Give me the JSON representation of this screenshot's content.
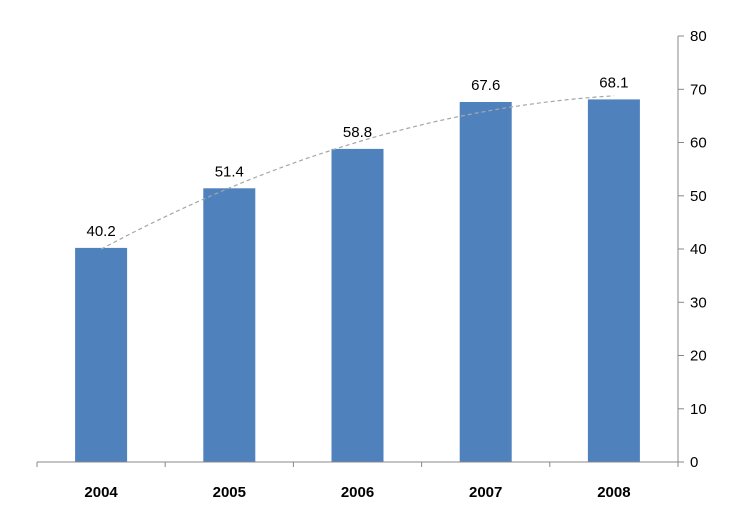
{
  "chart_data": {
    "type": "bar",
    "categories": [
      "2004",
      "2005",
      "2006",
      "2007",
      "2008"
    ],
    "values": [
      40.2,
      51.4,
      58.8,
      67.6,
      68.1
    ],
    "data_labels": [
      "40.2",
      "51.4",
      "58.8",
      "67.6",
      "68.1"
    ],
    "title": "",
    "xlabel": "",
    "ylabel": "",
    "ylim": [
      0,
      80
    ],
    "yticks": [
      0,
      10,
      20,
      30,
      40,
      50,
      60,
      70,
      80
    ],
    "y_axis_side": "right",
    "grid": false,
    "legend": "none",
    "trendline": {
      "style": "dashed",
      "type": "polynomial"
    },
    "colors": {
      "bar": "#4F81BD",
      "trendline": "#A6A6A6",
      "axis": "#888888"
    }
  }
}
